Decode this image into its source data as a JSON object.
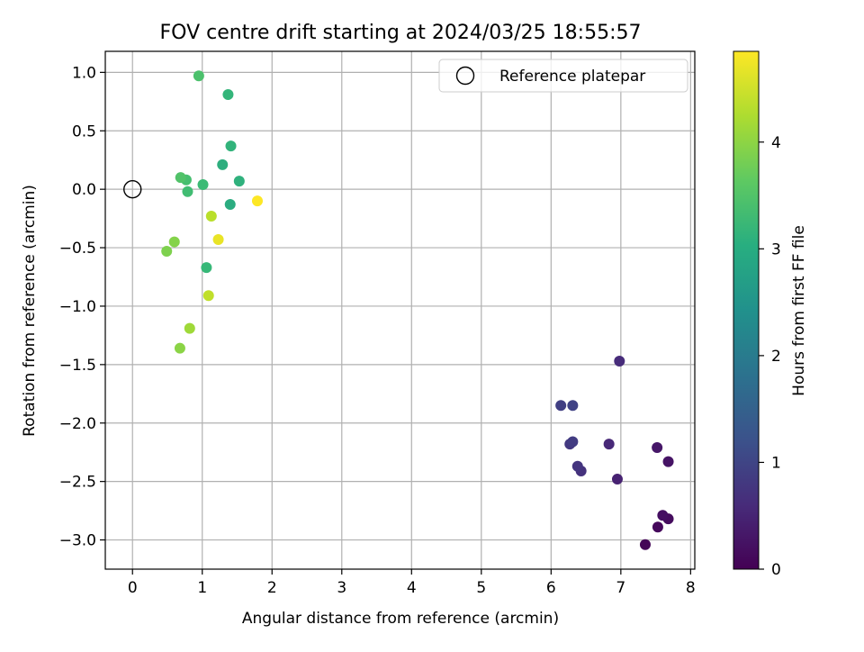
{
  "chart_data": {
    "type": "scatter",
    "title": "FOV centre drift starting at 2024/03/25 18:55:57",
    "xlabel": "Angular distance from reference (arcmin)",
    "ylabel": "Rotation from reference (arcmin)",
    "xlim": [
      -0.39,
      8.06
    ],
    "ylim": [
      -3.25,
      1.18
    ],
    "xticks": [
      0,
      1,
      2,
      3,
      4,
      5,
      6,
      7,
      8
    ],
    "xtick_labels": [
      "0",
      "1",
      "2",
      "3",
      "4",
      "5",
      "6",
      "7",
      "8"
    ],
    "yticks": [
      1.0,
      0.5,
      0.0,
      -0.5,
      -1.0,
      -1.5,
      -2.0,
      -2.5,
      -3.0
    ],
    "ytick_labels": [
      "1.0",
      "0.5",
      "0.0",
      "−0.5",
      "−1.0",
      "−1.5",
      "−2.0",
      "−2.5",
      "−3.0"
    ],
    "grid": true,
    "legend": {
      "placement": "top-right",
      "entries": [
        "Reference platepar"
      ]
    },
    "reference_point": {
      "x": 0.0,
      "y": 0.0,
      "label": "Reference platepar"
    },
    "colorbar": {
      "label": "Hours from first FF file",
      "colormap": "viridis",
      "range": [
        0,
        4.85
      ],
      "ticks": [
        0,
        1,
        2,
        3,
        4
      ],
      "tick_labels": [
        "0",
        "1",
        "2",
        "3",
        "4"
      ]
    },
    "points": [
      {
        "x": 7.35,
        "y": -3.04,
        "hours": 0.05
      },
      {
        "x": 7.53,
        "y": -2.89,
        "hours": 0.1
      },
      {
        "x": 7.68,
        "y": -2.82,
        "hours": 0.15
      },
      {
        "x": 7.6,
        "y": -2.79,
        "hours": 0.2
      },
      {
        "x": 7.68,
        "y": -2.33,
        "hours": 0.25
      },
      {
        "x": 7.52,
        "y": -2.21,
        "hours": 0.3
      },
      {
        "x": 6.95,
        "y": -2.48,
        "hours": 0.45
      },
      {
        "x": 6.83,
        "y": -2.18,
        "hours": 0.55
      },
      {
        "x": 6.98,
        "y": -1.47,
        "hours": 0.6
      },
      {
        "x": 6.43,
        "y": -2.41,
        "hours": 0.7
      },
      {
        "x": 6.38,
        "y": -2.37,
        "hours": 0.75
      },
      {
        "x": 6.27,
        "y": -2.18,
        "hours": 0.8
      },
      {
        "x": 6.31,
        "y": -2.16,
        "hours": 0.85
      },
      {
        "x": 6.14,
        "y": -1.85,
        "hours": 0.9
      },
      {
        "x": 6.31,
        "y": -1.85,
        "hours": 0.95
      },
      {
        "x": 1.4,
        "y": -0.13,
        "hours": 3.0
      },
      {
        "x": 1.29,
        "y": 0.21,
        "hours": 3.05
      },
      {
        "x": 1.53,
        "y": 0.07,
        "hours": 3.1
      },
      {
        "x": 1.41,
        "y": 0.37,
        "hours": 3.15
      },
      {
        "x": 1.37,
        "y": 0.81,
        "hours": 3.2
      },
      {
        "x": 1.06,
        "y": -0.67,
        "hours": 3.25
      },
      {
        "x": 1.01,
        "y": 0.04,
        "hours": 3.3
      },
      {
        "x": 0.79,
        "y": -0.02,
        "hours": 3.35
      },
      {
        "x": 0.77,
        "y": 0.08,
        "hours": 3.4
      },
      {
        "x": 0.95,
        "y": 0.97,
        "hours": 3.45
      },
      {
        "x": 0.69,
        "y": 0.1,
        "hours": 3.5
      },
      {
        "x": 0.49,
        "y": -0.53,
        "hours": 3.9
      },
      {
        "x": 0.6,
        "y": -0.45,
        "hours": 3.95
      },
      {
        "x": 0.68,
        "y": -1.36,
        "hours": 4.0
      },
      {
        "x": 0.82,
        "y": -1.19,
        "hours": 4.15
      },
      {
        "x": 1.13,
        "y": -0.23,
        "hours": 4.35
      },
      {
        "x": 1.09,
        "y": -0.91,
        "hours": 4.4
      },
      {
        "x": 1.23,
        "y": -0.43,
        "hours": 4.7
      },
      {
        "x": 1.79,
        "y": -0.1,
        "hours": 4.85
      }
    ]
  }
}
